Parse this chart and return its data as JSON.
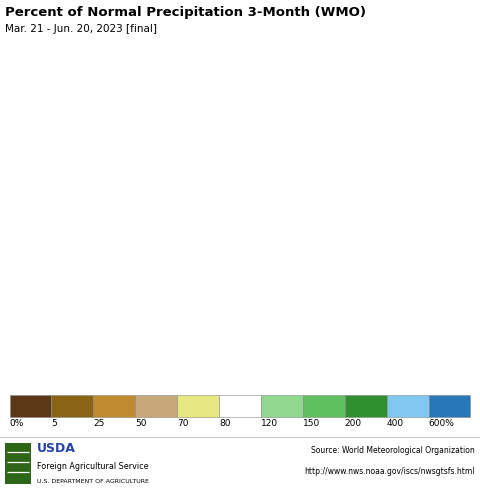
{
  "title": "Percent of Normal Precipitation 3-Month (WMO)",
  "subtitle": "Mar. 21 - Jun. 20, 2023 [final]",
  "title_fontsize": 9.5,
  "subtitle_fontsize": 7.5,
  "colorbar_colors": [
    "#5C3817",
    "#8B6314",
    "#C08A30",
    "#C8A87A",
    "#E8E882",
    "#FFFFFF",
    "#90D890",
    "#60C060",
    "#309030",
    "#80C8F0",
    "#2878B8"
  ],
  "colorbar_labels": [
    "0%",
    "5",
    "25",
    "50",
    "70",
    "80",
    "120",
    "150",
    "200",
    "400",
    "600%"
  ],
  "fig_width": 4.8,
  "fig_height": 4.95,
  "dpi": 100,
  "ocean_color": "#C0DFF0",
  "surrounding_land_color": "#E8D8D0",
  "map_extent": [
    124.0,
    131.5,
    33.0,
    43.5
  ],
  "footer_bg": "#F0F0F0",
  "usda_blue": "#2244AA",
  "usda_green": "#2E6618"
}
